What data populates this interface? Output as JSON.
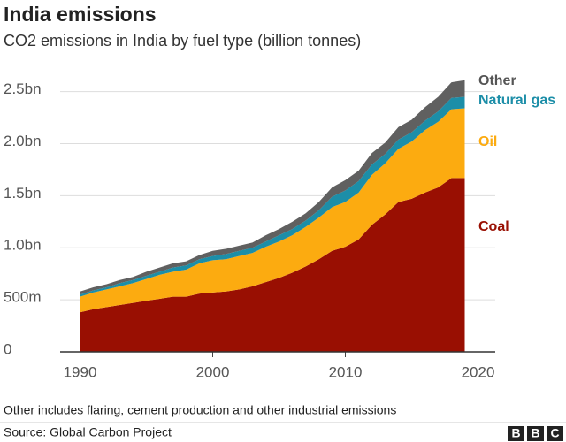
{
  "chart_data": {
    "type": "stacked-area",
    "title": "India emissions",
    "subtitle": "CO2 emissions in India by fuel type (billion tonnes)",
    "x": [
      1990,
      1991,
      1992,
      1993,
      1994,
      1995,
      1996,
      1997,
      1998,
      1999,
      2000,
      2001,
      2002,
      2003,
      2004,
      2005,
      2006,
      2007,
      2008,
      2009,
      2010,
      2011,
      2012,
      2013,
      2014,
      2015,
      2016,
      2017,
      2018,
      2019
    ],
    "series": [
      {
        "name": "Coal",
        "color": "#990f02",
        "values": [
          0.38,
          0.41,
          0.43,
          0.45,
          0.47,
          0.49,
          0.51,
          0.53,
          0.53,
          0.56,
          0.57,
          0.58,
          0.6,
          0.63,
          0.67,
          0.71,
          0.76,
          0.82,
          0.89,
          0.97,
          1.01,
          1.08,
          1.22,
          1.32,
          1.44,
          1.47,
          1.53,
          1.58,
          1.67,
          1.67
        ]
      },
      {
        "name": "Oil",
        "color": "#fcab10",
        "values": [
          0.15,
          0.16,
          0.17,
          0.18,
          0.19,
          0.21,
          0.23,
          0.24,
          0.26,
          0.29,
          0.31,
          0.31,
          0.32,
          0.32,
          0.34,
          0.35,
          0.36,
          0.38,
          0.4,
          0.42,
          0.43,
          0.45,
          0.48,
          0.49,
          0.51,
          0.55,
          0.6,
          0.63,
          0.66,
          0.67
        ]
      },
      {
        "name": "Natural gas",
        "color": "#1c8ea8",
        "values": [
          0.02,
          0.02,
          0.02,
          0.03,
          0.03,
          0.03,
          0.03,
          0.04,
          0.04,
          0.04,
          0.04,
          0.05,
          0.05,
          0.05,
          0.05,
          0.06,
          0.06,
          0.06,
          0.07,
          0.1,
          0.11,
          0.11,
          0.1,
          0.09,
          0.09,
          0.09,
          0.09,
          0.1,
          0.11,
          0.11
        ]
      },
      {
        "name": "Other",
        "color": "#606060",
        "values": [
          0.03,
          0.03,
          0.03,
          0.03,
          0.03,
          0.04,
          0.04,
          0.04,
          0.04,
          0.04,
          0.05,
          0.05,
          0.05,
          0.05,
          0.06,
          0.06,
          0.07,
          0.07,
          0.08,
          0.09,
          0.1,
          0.1,
          0.11,
          0.11,
          0.12,
          0.12,
          0.13,
          0.14,
          0.15,
          0.16
        ]
      }
    ],
    "xlim": [
      1988.5,
      2021.3
    ],
    "xticks": [
      1990,
      2000,
      2010,
      2020
    ],
    "ylim": [
      0,
      2.65
    ],
    "yticks": [
      0,
      {
        "value": 0.5,
        "label": "500m"
      },
      {
        "value": 1.0,
        "label": "1.0bn"
      },
      {
        "value": 1.5,
        "label": "1.5bn"
      },
      {
        "value": 2.0,
        "label": "2.0bn"
      },
      {
        "value": 2.5,
        "label": "2.5bn"
      }
    ],
    "grid": true,
    "note": "Other includes flaring, cement production and other industrial emissions",
    "source": "Source: Global Carbon Project",
    "logo": [
      "B",
      "B",
      "C"
    ]
  }
}
